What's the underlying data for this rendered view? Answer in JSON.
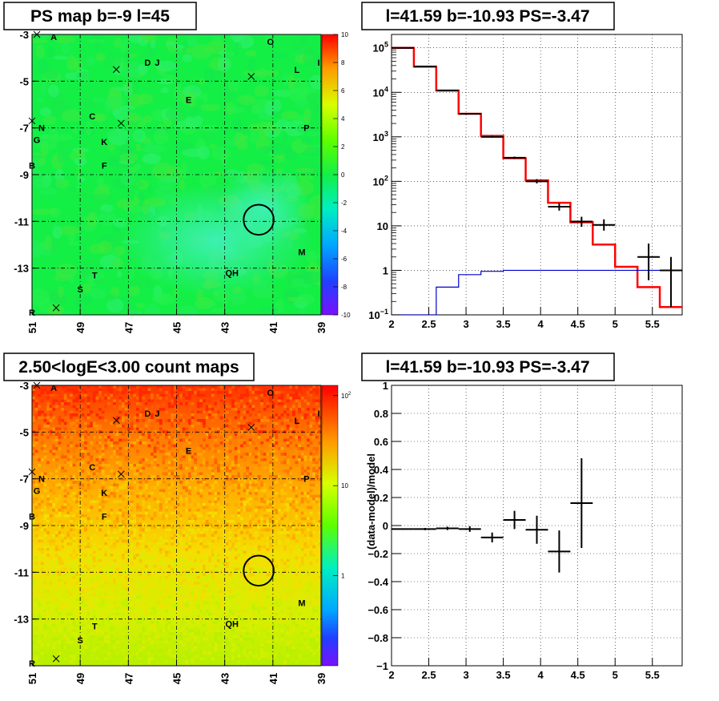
{
  "chart_data": [
    {
      "id": "ps_map",
      "type": "heatmap",
      "title": "PS map b=-9 l=45",
      "xlim": [
        51,
        39
      ],
      "ylim": [
        -3,
        -15
      ],
      "xticks": [
        "51",
        "49",
        "47",
        "45",
        "43",
        "41",
        "39"
      ],
      "yticks": [
        "-3",
        "-5",
        "-7",
        "-9",
        "-11",
        "-13"
      ],
      "palette": {
        "ticks": [
          "10",
          "8",
          "6",
          "4",
          "2",
          "0",
          "-2",
          "-4",
          "-6",
          "-8",
          "-10"
        ],
        "range": [
          -10,
          10
        ]
      },
      "base_color": "#14ef46",
      "highlight_color": "#2ff0a8",
      "sources": [
        {
          "name": "A",
          "l": 50.1,
          "b": -3.1
        },
        {
          "name": "O",
          "l": 41.1,
          "b": -3.3
        },
        {
          "name": "D",
          "l": 46.2,
          "b": -4.2
        },
        {
          "name": "J",
          "l": 45.8,
          "b": -4.2
        },
        {
          "name": "L",
          "l": 40.0,
          "b": -4.5
        },
        {
          "name": "I",
          "l": 39.1,
          "b": -4.2
        },
        {
          "name": "E",
          "l": 44.5,
          "b": -5.8
        },
        {
          "name": "C",
          "l": 48.5,
          "b": -6.5
        },
        {
          "name": "N",
          "l": 50.6,
          "b": -7.0
        },
        {
          "name": "P",
          "l": 39.6,
          "b": -7.0
        },
        {
          "name": "G",
          "l": 50.8,
          "b": -7.5
        },
        {
          "name": "K",
          "l": 48.0,
          "b": -7.6
        },
        {
          "name": "F",
          "l": 48.0,
          "b": -8.6
        },
        {
          "name": "B",
          "l": 51.0,
          "b": -8.6
        },
        {
          "name": "M",
          "l": 39.8,
          "b": -12.3
        },
        {
          "name": "QH",
          "l": 42.7,
          "b": -13.2
        },
        {
          "name": "T",
          "l": 48.4,
          "b": -13.3
        },
        {
          "name": "S",
          "l": 49.0,
          "b": -13.9
        },
        {
          "name": "R",
          "l": 51.0,
          "b": -14.9
        }
      ],
      "crosses": [
        [
          50.8,
          -3.0
        ],
        [
          47.5,
          -4.5
        ],
        [
          41.9,
          -4.8
        ],
        [
          51.0,
          -6.7
        ],
        [
          47.3,
          -6.8
        ],
        [
          50.0,
          -14.7
        ]
      ],
      "circle": {
        "l": 41.59,
        "b": -10.93,
        "r": 0.5
      }
    },
    {
      "id": "spectrum",
      "type": "line",
      "title": "l=41.59 b=-10.93 PS=-3.47",
      "xlim": [
        2,
        5.9
      ],
      "ylim": [
        0.1,
        200000
      ],
      "yscale": "log",
      "grid": true,
      "xticks": [
        "2",
        "2.5",
        "3",
        "3.5",
        "4",
        "4.5",
        "5",
        "5.5"
      ],
      "yticks": [
        {
          "v": 0.1,
          "m": "10",
          "e": "−1"
        },
        {
          "v": 1,
          "m": "1",
          "e": ""
        },
        {
          "v": 10,
          "m": "10",
          "e": ""
        },
        {
          "v": 100,
          "m": "10",
          "e": "2"
        },
        {
          "v": 1000,
          "m": "10",
          "e": "3"
        },
        {
          "v": 10000,
          "m": "10",
          "e": "4"
        },
        {
          "v": 100000,
          "m": "10",
          "e": "5"
        }
      ],
      "bin_edges": [
        2.0,
        2.3,
        2.6,
        2.9,
        3.2,
        3.5,
        3.8,
        4.1,
        4.4,
        4.7,
        5.0,
        5.3,
        5.6,
        5.9
      ],
      "series": [
        {
          "style": "step",
          "color": "#ff0000",
          "values": [
            100000,
            38000,
            11000,
            3300,
            1050,
            330,
            105,
            33,
            12,
            3.8,
            1.2,
            0.42,
            0.15
          ]
        },
        {
          "style": "step",
          "color": "#0000cc",
          "values": [
            0.1,
            0.1,
            0.42,
            0.8,
            0.95,
            1.0,
            1.0,
            1.0,
            1.0,
            1.0,
            1.0,
            1.0,
            1.0
          ]
        },
        {
          "style": "errorbar",
          "color": "#000000",
          "points": [
            {
              "x": 2.15,
              "y": 100000,
              "lo": 99000,
              "hi": 101000
            },
            {
              "x": 2.45,
              "y": 38000,
              "lo": 37500,
              "hi": 38500
            },
            {
              "x": 2.75,
              "y": 11000,
              "lo": 10800,
              "hi": 11200
            },
            {
              "x": 3.05,
              "y": 3300,
              "lo": 3200,
              "hi": 3400
            },
            {
              "x": 3.35,
              "y": 1000,
              "lo": 950,
              "hi": 1060
            },
            {
              "x": 3.65,
              "y": 340,
              "lo": 320,
              "hi": 360
            },
            {
              "x": 3.95,
              "y": 100,
              "lo": 90,
              "hi": 112
            },
            {
              "x": 4.25,
              "y": 27,
              "lo": 22,
              "hi": 32
            },
            {
              "x": 4.55,
              "y": 12.5,
              "lo": 9.5,
              "hi": 16
            },
            {
              "x": 4.85,
              "y": 10.5,
              "lo": 7.8,
              "hi": 14
            },
            {
              "x": 5.45,
              "y": 2.0,
              "lo": 0.6,
              "hi": 4.0
            },
            {
              "x": 5.75,
              "y": 1.0,
              "lo": 0.15,
              "hi": 2.0
            }
          ]
        }
      ]
    },
    {
      "id": "count_map",
      "type": "heatmap",
      "title": "2.50<logE<3.00 count maps",
      "xlim": [
        51,
        39
      ],
      "ylim": [
        -3,
        -15
      ],
      "xticks": [
        "51",
        "49",
        "47",
        "45",
        "43",
        "41",
        "39"
      ],
      "yticks": [
        "-3",
        "-5",
        "-7",
        "-9",
        "-11",
        "-13"
      ],
      "palette": {
        "ticks": [
          {
            "v": 100,
            "m": "10",
            "e": "2"
          },
          {
            "v": 10,
            "m": "10",
            "e": ""
          },
          {
            "v": 1,
            "m": "1",
            "e": ""
          }
        ],
        "scale": "log",
        "range": [
          0.1,
          130
        ]
      },
      "gradient": [
        "#ff2a00",
        "#ff6a00",
        "#ffa000",
        "#f8d800",
        "#d9f000",
        "#b8f000"
      ],
      "sources": "same as ps_map",
      "circle": {
        "l": 41.59,
        "b": -10.93,
        "r": 0.5
      }
    },
    {
      "id": "residual",
      "type": "scatter",
      "title": "l=41.59 b=-10.93 PS=-3.47",
      "ylabel": "(data-model)/model",
      "xlim": [
        2,
        5.9
      ],
      "ylim": [
        -1,
        1
      ],
      "grid": true,
      "xticks": [
        "2",
        "2.5",
        "3",
        "3.5",
        "4",
        "4.5",
        "5",
        "5.5"
      ],
      "yticks": [
        "1",
        "0.8",
        "0.6",
        "0.4",
        "0.2",
        "0",
        "−0.2",
        "−0.4",
        "−0.6",
        "−0.8",
        "−1"
      ],
      "points": [
        {
          "x": 2.15,
          "y": -0.025,
          "xerr": 0.15,
          "yerr": 0.005
        },
        {
          "x": 2.45,
          "y": -0.025,
          "xerr": 0.15,
          "yerr": 0.008
        },
        {
          "x": 2.75,
          "y": -0.02,
          "xerr": 0.15,
          "yerr": 0.012
        },
        {
          "x": 3.05,
          "y": -0.025,
          "xerr": 0.15,
          "yerr": 0.02
        },
        {
          "x": 3.35,
          "y": -0.085,
          "xerr": 0.15,
          "yerr": 0.035
        },
        {
          "x": 3.65,
          "y": 0.04,
          "xerr": 0.15,
          "yerr": 0.065
        },
        {
          "x": 3.95,
          "y": -0.03,
          "xerr": 0.15,
          "yerr": 0.1
        },
        {
          "x": 4.25,
          "y": -0.185,
          "xerr": 0.15,
          "yerr": 0.15
        },
        {
          "x": 4.55,
          "y": 0.16,
          "xerr": 0.15,
          "yerr": 0.32
        }
      ]
    }
  ]
}
